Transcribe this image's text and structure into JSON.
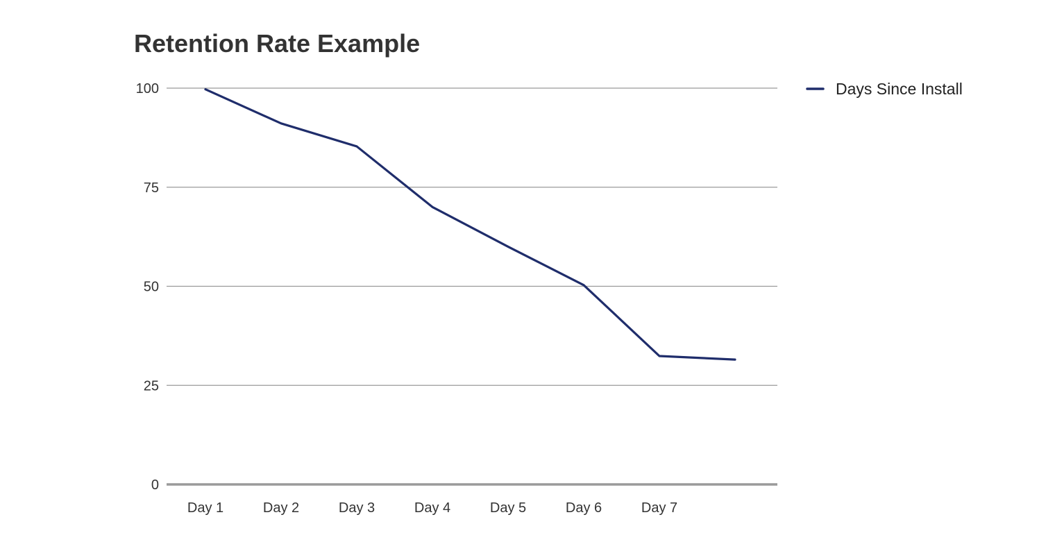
{
  "chart_data": {
    "type": "line",
    "title": "Retention Rate Example",
    "xlabel": "",
    "ylabel": "",
    "categories": [
      "Day 1",
      "Day 2",
      "Day 3",
      "Day 4",
      "Day 5",
      "Day 6",
      "Day 7",
      ""
    ],
    "series": [
      {
        "name": "Days Since Install",
        "color": "#1f2d6b",
        "values": [
          99.7,
          91.1,
          85.3,
          70.0,
          60.0,
          50.3,
          32.4,
          31.5
        ]
      }
    ],
    "ylim": [
      0,
      100
    ],
    "yticks": [
      0,
      25,
      50,
      75,
      100
    ],
    "grid": true,
    "legend": {
      "position": "top-right",
      "marker_color": "#1f2d6b"
    }
  }
}
